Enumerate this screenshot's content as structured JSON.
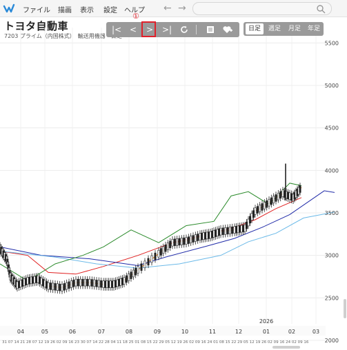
{
  "menubar": {
    "items": [
      "ファイル",
      "描画",
      "表示",
      "設定",
      "ヘルプ"
    ],
    "back": "←",
    "forward": "→",
    "search_placeholder": ""
  },
  "header": {
    "title": "トヨタ自動車",
    "subtitle": "7203 プライム（内国株式）　輸送用機器　日足"
  },
  "toolbar": {
    "first": "|<",
    "prev": "<",
    "next": ">",
    "last": ">|",
    "refresh_icon": "refresh-icon",
    "list_icon": "list-icon",
    "favorite_icon": "heart-add-icon",
    "step_marker": "①"
  },
  "period_buttons": [
    "日足",
    "週足",
    "月足",
    "年足"
  ],
  "period_active": 0,
  "colors": {
    "highlight": "#e0202a",
    "candle_up": "#ffffff",
    "candle_down": "#222222",
    "ma_short": "#e8811a",
    "ma_mid": "#e02020",
    "ma_long": "#1f2aa8",
    "ma_xlong": "#6ab9e8",
    "ichimoku": "#2a8a2a"
  },
  "chart_data": {
    "type": "line",
    "title": "",
    "y_ticks": [
      "5500",
      "5000",
      "4500",
      "4000",
      "3500",
      "3000",
      "2500",
      "2000"
    ],
    "ylim": [
      2000,
      5600
    ],
    "x_labels": [
      "04",
      "05",
      "06",
      "07",
      "08",
      "09",
      "10",
      "11",
      "12",
      "01",
      "02",
      "03"
    ],
    "year_label": "2026",
    "x_labels_pos": [
      30,
      65,
      105,
      147,
      187,
      228,
      268,
      308,
      346,
      386,
      423,
      458
    ],
    "series": [
      {
        "color": "#222222",
        "values": [
          3080,
          2950,
          2750,
          2650,
          2700,
          2720,
          2640,
          2620,
          2680,
          2680,
          2660,
          2660,
          2700,
          2830,
          3020,
          3150,
          3170,
          3220,
          3240,
          3280,
          3300,
          3320,
          3520,
          3620,
          3730,
          3680,
          3800
        ]
      }
    ],
    "x": [
      0,
      10,
      15,
      25,
      40,
      55,
      70,
      90,
      110,
      130,
      150,
      165,
      180,
      200,
      230,
      250,
      270,
      290,
      305,
      320,
      340,
      355,
      370,
      390,
      410,
      425,
      437
    ]
  },
  "date_axis": "31 07 14 21 28 07 12 19 26 02 09 16 23 30 07 14 22 28 04 11 18 25 01 08 15 22 29 05 12 19 26 02 09 16 24 01 08 15 22 29 05 12 19 26 02 09 16 24 02 09 16"
}
